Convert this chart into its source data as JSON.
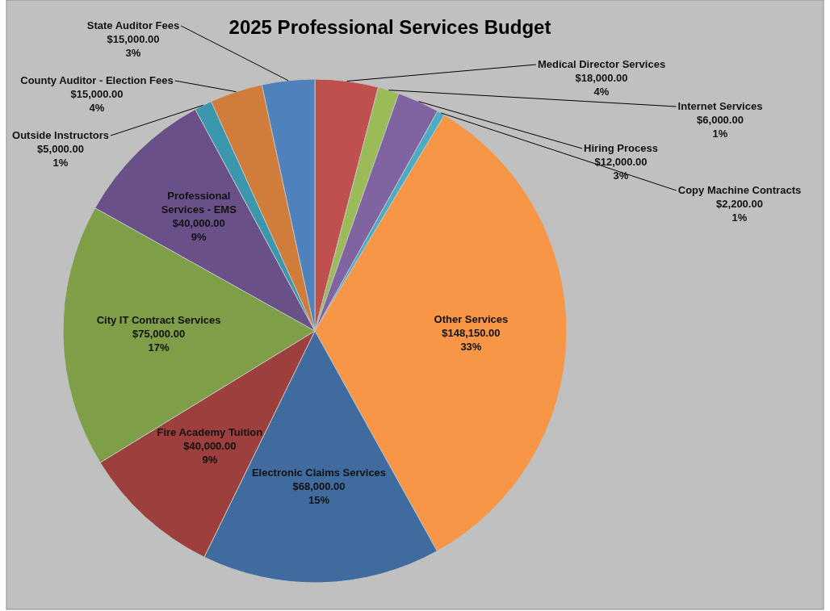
{
  "chart_data": {
    "type": "pie",
    "title": "2025 Professional Services Budget",
    "categories": [
      "Medical Director Services",
      "Internet Services",
      "Hiring Process",
      "Copy Machine Contracts",
      "Other Services",
      "Electronic Claims Services",
      "Fire Academy Tuition",
      "City IT Contract Services",
      "Professional Services - EMS",
      "Outside Instructors",
      "County Auditor - Election Fees",
      "State Auditor Fees"
    ],
    "values": [
      18000,
      6000,
      12000,
      2200,
      148150,
      68000,
      40000,
      75000,
      40000,
      5000,
      15000,
      15000
    ],
    "value_labels": [
      "$18,000.00\n4%",
      "$6,000.00\n1%",
      "$12,000.00\n3%",
      "$2,200.00\n1%",
      "$148,150.00\n33%",
      "$68,000.00\n15%",
      "$40,000.00\n9%",
      "$75,000.00\n17%",
      "$40,000.00\n9%",
      "$5,000.00\n1%",
      "$15,000.00\n4%",
      "$15,000.00\n3%"
    ],
    "colors": [
      "#c0504d",
      "#9bbb59",
      "#8064a2",
      "#4bacc6",
      "#f79646",
      "#3f6b9e",
      "#9c3f3d",
      "#7f9e48",
      "#6a5088",
      "#3a97ad",
      "#d07c3a",
      "#4f81bd"
    ]
  }
}
